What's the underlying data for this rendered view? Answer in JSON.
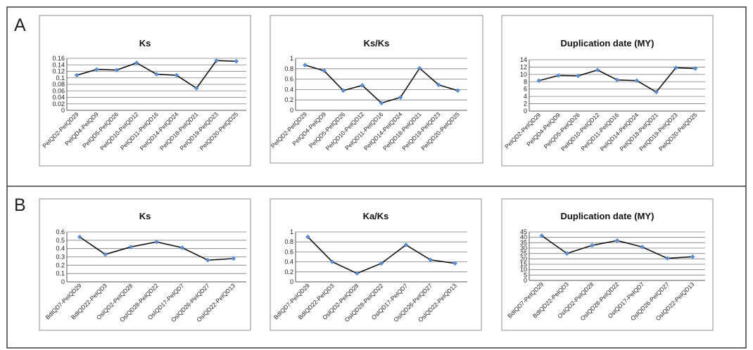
{
  "panels": [
    {
      "label": "A"
    },
    {
      "label": "B"
    }
  ],
  "chart_data": [
    {
      "panel": "A",
      "type": "line",
      "title": "Ks",
      "categories": [
        "PeIQD2-PeIQD29",
        "PeIQD4-PeIQD9",
        "PeIQD5-PeIQD26",
        "PeIQD10-PeIQD12",
        "PeIQD11-PeIQD16",
        "PeIQD14-PeIQD24",
        "PeIQD18-PeIQD21",
        "PeIQD19-PeIQD23",
        "PeIQD20-PeIQD25"
      ],
      "values": [
        0.108,
        0.126,
        0.124,
        0.146,
        0.111,
        0.108,
        0.068,
        0.153,
        0.151
      ],
      "ylim": [
        0,
        0.16
      ],
      "yticks": [
        "0",
        "0.02",
        "0.04",
        "0.06",
        "0.08",
        "0.1",
        "0.12",
        "0.14",
        "0.16"
      ],
      "grid": true,
      "legend": "none",
      "line_color": "#111111",
      "marker_color": "#5b8fd6"
    },
    {
      "panel": "A",
      "type": "line",
      "title": "Ks/Ks",
      "categories": [
        "PeIQD2-PeIQD29",
        "PeIQD4-PeIQD9",
        "PeIQD5-PeIQD26",
        "PeIQD10-PeIQD12",
        "PeIQD11-PeIQD16",
        "PeIQD14-PeIQD24",
        "PeIQD18-PeIQD21",
        "PeIQD19-PeIQD23",
        "PeIQD20-PeIQD25"
      ],
      "values": [
        0.87,
        0.76,
        0.38,
        0.48,
        0.14,
        0.25,
        0.81,
        0.49,
        0.38
      ],
      "ylim": [
        0,
        1
      ],
      "yticks": [
        "0",
        "0.2",
        "0.4",
        "0.6",
        "0.8",
        "1"
      ],
      "grid": true,
      "legend": "none",
      "line_color": "#111111",
      "marker_color": "#5b8fd6"
    },
    {
      "panel": "A",
      "type": "line",
      "title": "Duplication date (MY)",
      "categories": [
        "PeIQD2-PeIQD29",
        "PeIQD4-PeIQD9",
        "PeIQD5-PeIQD26",
        "PeIQD10-PeIQD12",
        "PeIQD11-PeIQD16",
        "PeIQD14-PeIQD24",
        "PeIQD18-PeIQD21",
        "PeIQD19-PeIQD23",
        "PeIQD20-PeIQD25"
      ],
      "values": [
        8.3,
        9.7,
        9.6,
        11.2,
        8.5,
        8.3,
        5.2,
        11.8,
        11.6
      ],
      "ylim": [
        0,
        14
      ],
      "yticks": [
        "0",
        "2",
        "4",
        "6",
        "8",
        "10",
        "12",
        "14"
      ],
      "grid": true,
      "legend": "none",
      "line_color": "#111111",
      "marker_color": "#5b8fd6"
    },
    {
      "panel": "B",
      "type": "line",
      "title": "Ks",
      "categories": [
        "BdIQD7-PeIQD29",
        "BdIQD22-PeIQD3",
        "OsIQD2-PeIQD28",
        "OsIQD28-PeIQD22",
        "OsIQD17-PeIQD7",
        "OsIQD26-PeIQD27",
        "OsIQD22-PeIQD13"
      ],
      "values": [
        0.54,
        0.33,
        0.42,
        0.48,
        0.41,
        0.26,
        0.28
      ],
      "ylim": [
        0,
        0.6
      ],
      "yticks": [
        "0",
        "0.1",
        "0.2",
        "0.3",
        "0.4",
        "0.5",
        "0.6"
      ],
      "grid": true,
      "legend": "none",
      "line_color": "#111111",
      "marker_color": "#5b8fd6"
    },
    {
      "panel": "B",
      "type": "line",
      "title": "Ka/Ks",
      "categories": [
        "BdIQD7-PeIQD29",
        "BdIQD22-PeIQD3",
        "OsIQD2-PeIQD28",
        "OsIQD28-PeIQD22",
        "OsIQD17-PeIQD7",
        "OsIQD26-PeIQD27",
        "OsIQD22-PeIQD13"
      ],
      "values": [
        0.9,
        0.4,
        0.17,
        0.37,
        0.74,
        0.44,
        0.37
      ],
      "ylim": [
        0,
        1
      ],
      "yticks": [
        "0",
        "0.2",
        "0.4",
        "0.6",
        "0.8",
        "1"
      ],
      "grid": true,
      "legend": "none",
      "line_color": "#111111",
      "marker_color": "#5b8fd6"
    },
    {
      "panel": "B",
      "type": "line",
      "title": "Duplication date (MY)",
      "categories": [
        "BdIQD7-PeIQD29",
        "BdIQD22-PeIQD3",
        "OsIQD2-PeIQD28",
        "OsIQD28-PeIQD22",
        "OsIQD17-PeIQD7",
        "OsIQD26-PeIQD27",
        "OsIQD22-PeIQD13"
      ],
      "values": [
        41.5,
        25.0,
        32.5,
        37.0,
        31.0,
        20.5,
        22.0
      ],
      "ylim": [
        0,
        45
      ],
      "yticks": [
        "0",
        "5",
        "10",
        "15",
        "20",
        "25",
        "30",
        "35",
        "40",
        "45"
      ],
      "grid": true,
      "legend": "none",
      "line_color": "#111111",
      "marker_color": "#5b8fd6"
    }
  ]
}
